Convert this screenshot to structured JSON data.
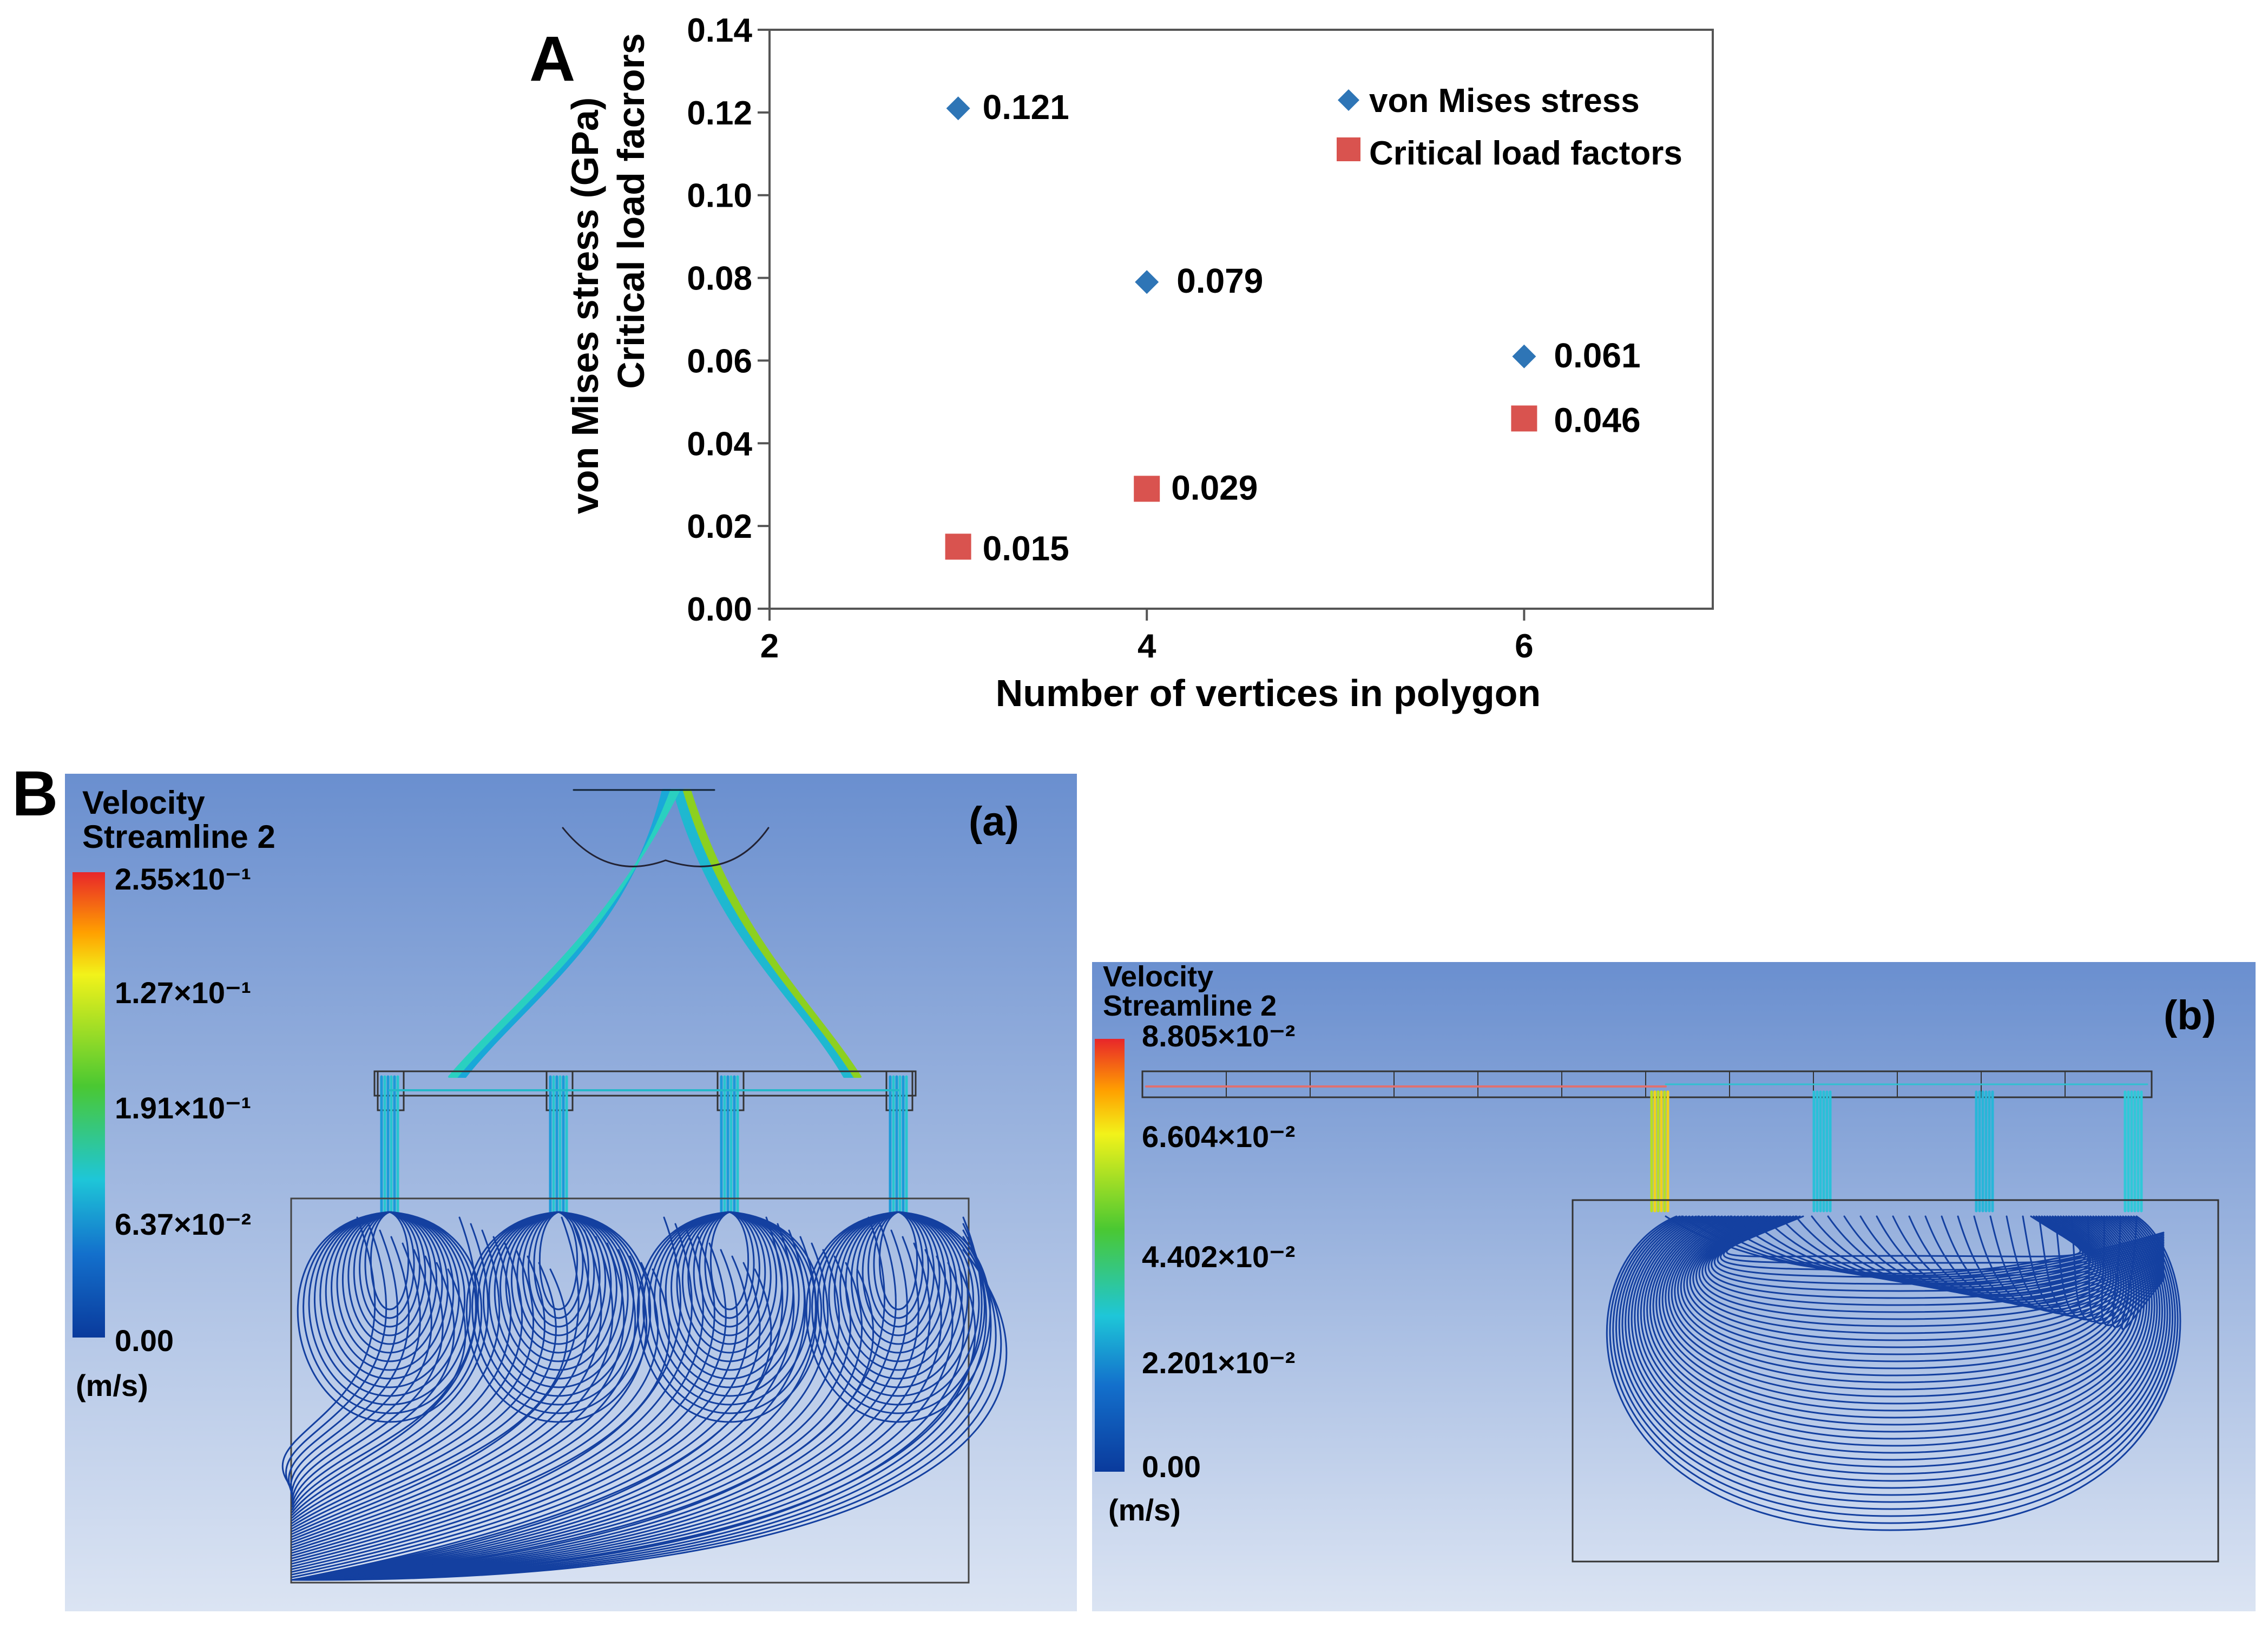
{
  "panel_a": {
    "letter": "A",
    "chart_data": {
      "type": "scatter",
      "xlabel": "Number of vertices in polygon",
      "ylabel_lines": [
        "von Mises stress (GPa)",
        "Critical load facrors"
      ],
      "xlim": [
        2,
        7
      ],
      "ylim": [
        0,
        0.14
      ],
      "x_ticks": [
        2,
        4,
        6
      ],
      "x_tick_labels": [
        "2",
        "4",
        "6"
      ],
      "y_ticks": [
        0,
        0.02,
        0.04,
        0.06,
        0.08,
        0.1,
        0.12,
        0.14
      ],
      "y_tick_labels": [
        "0.00",
        "0.02",
        "0.04",
        "0.06",
        "0.08",
        "0.10",
        "0.12",
        "0.14"
      ],
      "grid": false,
      "legend_position": "top-right",
      "series": [
        {
          "name": "von Mises stress",
          "marker": "diamond",
          "color": "#2e75b6",
          "x": [
            3,
            4,
            6
          ],
          "y": [
            0.121,
            0.079,
            0.061
          ],
          "labels": [
            "0.121",
            "0.079",
            "0.061"
          ]
        },
        {
          "name": "Critical load factors",
          "marker": "square",
          "color": "#d9534f",
          "x": [
            3,
            4,
            6
          ],
          "y": [
            0.015,
            0.029,
            0.046
          ],
          "labels": [
            "0.015",
            "0.029",
            "0.046"
          ]
        }
      ]
    }
  },
  "panel_b": {
    "letter": "B",
    "a": {
      "label": "(a)",
      "legend_title": [
        "Velocity",
        "Streamline 2"
      ],
      "legend_ticks": [
        "2.55×10⁻¹",
        "1.27×10⁻¹",
        "1.91×10⁻¹",
        "6.37×10⁻²",
        "0.00"
      ],
      "unit": "(m/s)"
    },
    "b": {
      "label": "(b)",
      "legend_title": [
        "Velocity",
        "Streamline 2"
      ],
      "legend_ticks": [
        "8.805×10⁻²",
        "6.604×10⁻²",
        "4.402×10⁻²",
        "2.201×10⁻²",
        "0.00"
      ],
      "unit": "(m/s)"
    },
    "colors": {
      "streamline": "#1440a0",
      "background_top": "#6a8fcf",
      "background_bottom": "#dbe4f3"
    }
  }
}
